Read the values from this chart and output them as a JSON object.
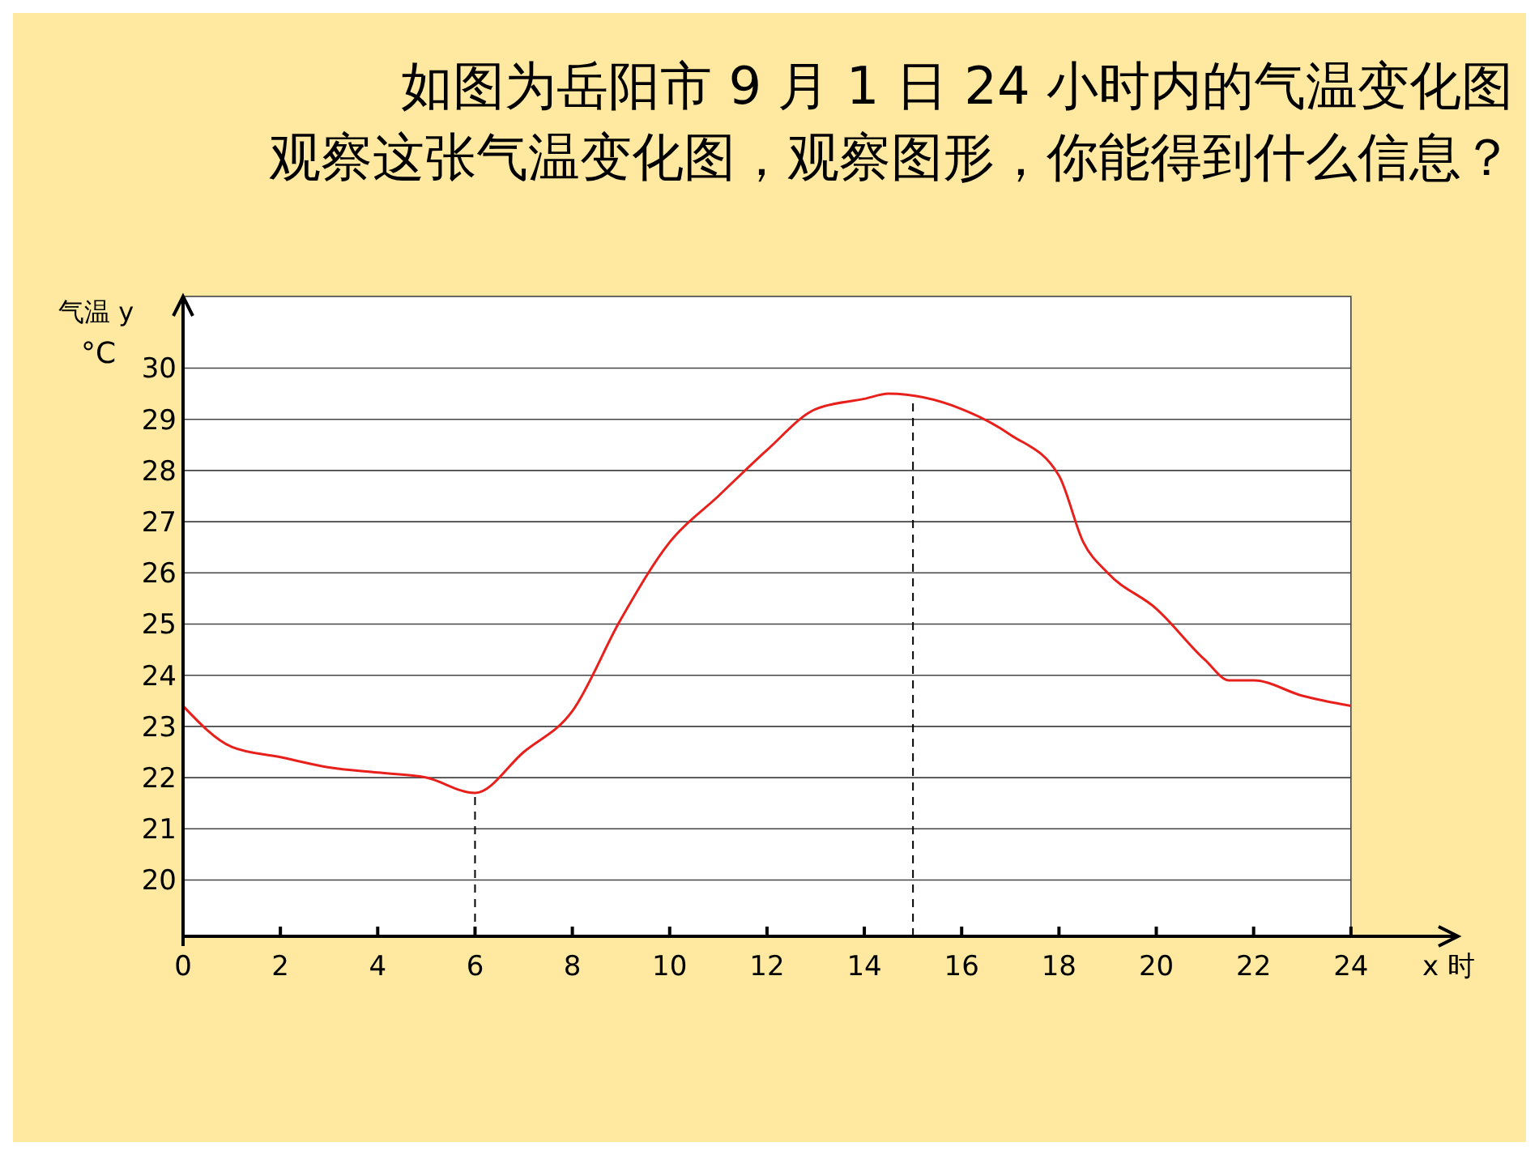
{
  "chart_data": {
    "type": "line",
    "title": "如图为岳阳市 9 月 1 日 24 小时内的气温变化图",
    "subtitle": "观察这张气温变化图，观察图形，你能得到什么信息？",
    "xlabel": "x 时",
    "ylabel": "气温 y °C",
    "series": [
      {
        "color": "#e8201c",
        "x": [
          0,
          1,
          2,
          3,
          4,
          5,
          6,
          7,
          8,
          9,
          10,
          11,
          12,
          13,
          14,
          14.5,
          16,
          17,
          18,
          18.5,
          19,
          20,
          21,
          21.5,
          22,
          23,
          24
        ],
        "values": [
          23.4,
          22.6,
          22.4,
          22.2,
          22.1,
          22.0,
          21.7,
          22.5,
          23.3,
          25.1,
          26.6,
          27.5,
          28.4,
          29.2,
          29.4,
          29.5,
          29.2,
          28.7,
          27.9,
          26.6,
          26.0,
          25.3,
          24.3,
          23.9,
          23.9,
          23.6,
          23.4
        ]
      }
    ],
    "xlim": [
      0,
      26.2
    ],
    "xticks": [
      0,
      2,
      4,
      6,
      8,
      10,
      12,
      14,
      16,
      18,
      20,
      22,
      24
    ],
    "ylim": [
      18.9,
      31.4
    ],
    "yticks": [
      20,
      21,
      22,
      23,
      24,
      25,
      26,
      27,
      28,
      29,
      30
    ],
    "grid": "y",
    "marker": "none",
    "line_style": "solid",
    "ref_lines": [
      {
        "axis": "x",
        "value": 6,
        "line_style": "dashed",
        "color": "#000000"
      },
      {
        "axis": "x",
        "value": 15,
        "line_style": "dashed",
        "color": "#000000"
      }
    ]
  }
}
